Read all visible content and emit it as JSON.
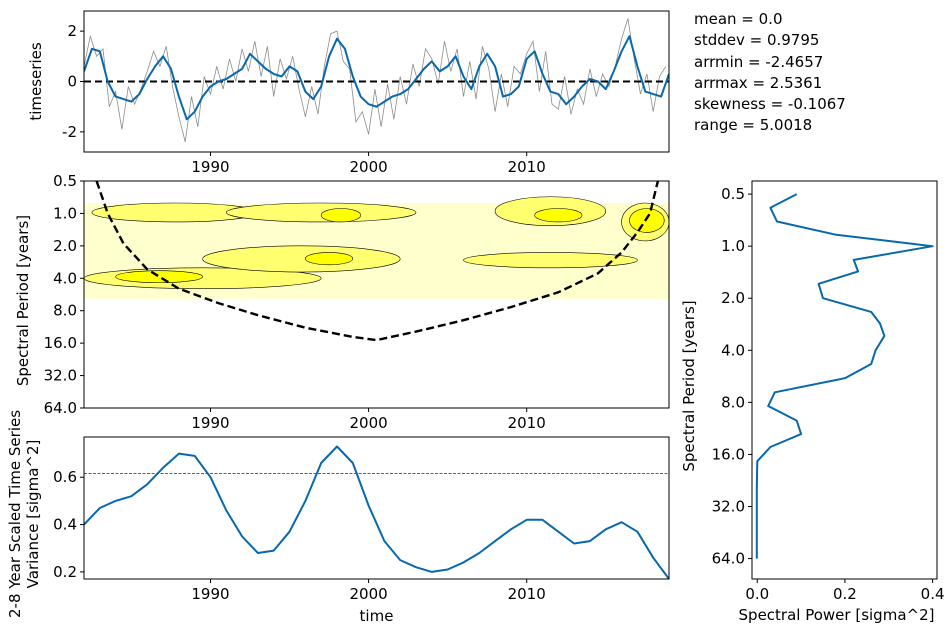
{
  "stats": {
    "mean": "mean = 0.0",
    "stddev": "stddev = 0.9795",
    "arrmin": "arrmin = -2.4657",
    "arrmax": "arrmax = 2.5361",
    "skewness": "skewness = -0.1067",
    "range": "range = 5.0018"
  },
  "colors": {
    "series": "#0868ac",
    "raw": "#8c8c8c",
    "contour_low": "#ffffc0",
    "contour_mid": "#ffff70",
    "contour_high": "#ffff00"
  },
  "chart_data": [
    {
      "id": "timeseries",
      "type": "line",
      "ylabel": "timeseries",
      "xlim": [
        1982,
        2019
      ],
      "ylim": [
        -2.8,
        2.8
      ],
      "x_ticks": [
        "1990",
        "2000",
        "2010"
      ],
      "y_ticks": [
        "-2",
        "0",
        "2"
      ],
      "zero_line": 0,
      "smooth_series": {
        "x": [
          1982.0,
          1982.5,
          1983.0,
          1983.5,
          1984.0,
          1984.5,
          1985.0,
          1985.5,
          1986.0,
          1986.5,
          1987.0,
          1987.5,
          1988.0,
          1988.5,
          1989.0,
          1989.5,
          1990.0,
          1990.5,
          1991.0,
          1991.5,
          1992.0,
          1992.5,
          1993.0,
          1993.5,
          1994.0,
          1994.5,
          1995.0,
          1995.5,
          1996.0,
          1996.5,
          1997.0,
          1997.5,
          1998.0,
          1998.5,
          1999.0,
          1999.5,
          2000.0,
          2000.5,
          2001.0,
          2001.5,
          2002.0,
          2002.5,
          2003.0,
          2003.5,
          2004.0,
          2004.5,
          2005.0,
          2005.5,
          2006.0,
          2006.5,
          2007.0,
          2007.5,
          2008.0,
          2008.5,
          2009.0,
          2009.5,
          2010.0,
          2010.5,
          2011.0,
          2011.5,
          2012.0,
          2012.5,
          2013.0,
          2013.5,
          2014.0,
          2014.5,
          2015.0,
          2015.5,
          2016.0,
          2016.5,
          2017.0,
          2017.5,
          2018.0,
          2018.5,
          2019.0
        ],
        "y": [
          0.4,
          1.3,
          1.2,
          0.0,
          -0.6,
          -0.7,
          -0.8,
          -0.5,
          0.1,
          0.6,
          1.0,
          0.5,
          -0.6,
          -1.5,
          -1.2,
          -0.6,
          -0.2,
          0.0,
          0.1,
          0.3,
          0.5,
          1.1,
          0.8,
          0.5,
          0.3,
          0.2,
          0.6,
          0.4,
          -0.4,
          -0.7,
          -0.2,
          1.0,
          1.7,
          1.3,
          0.2,
          -0.6,
          -0.9,
          -1.0,
          -0.8,
          -0.6,
          -0.5,
          -0.3,
          0.1,
          0.5,
          0.8,
          0.4,
          0.6,
          1.0,
          0.2,
          -0.3,
          0.6,
          1.1,
          0.6,
          -0.6,
          -0.5,
          -0.2,
          0.9,
          1.2,
          0.3,
          -0.4,
          -0.5,
          -0.9,
          -0.6,
          -0.2,
          0.1,
          0.0,
          -0.3,
          0.4,
          1.2,
          1.8,
          0.6,
          -0.4,
          -0.5,
          -0.6,
          0.3
        ]
      },
      "raw_series": {
        "x": [
          1982.0,
          1982.4,
          1982.8,
          1983.2,
          1983.6,
          1984.0,
          1984.4,
          1984.8,
          1985.2,
          1985.6,
          1986.0,
          1986.4,
          1986.8,
          1987.2,
          1987.6,
          1988.0,
          1988.4,
          1988.8,
          1989.2,
          1989.6,
          1990.0,
          1990.4,
          1990.8,
          1991.2,
          1991.6,
          1992.0,
          1992.4,
          1992.8,
          1993.2,
          1993.6,
          1994.0,
          1994.4,
          1994.8,
          1995.2,
          1995.6,
          1996.0,
          1996.4,
          1996.8,
          1997.2,
          1997.6,
          1998.0,
          1998.4,
          1998.8,
          1999.2,
          1999.6,
          2000.0,
          2000.4,
          2000.8,
          2001.2,
          2001.6,
          2002.0,
          2002.4,
          2002.8,
          2003.2,
          2003.6,
          2004.0,
          2004.4,
          2004.8,
          2005.2,
          2005.6,
          2006.0,
          2006.4,
          2006.8,
          2007.2,
          2007.6,
          2008.0,
          2008.4,
          2008.8,
          2009.2,
          2009.6,
          2010.0,
          2010.4,
          2010.8,
          2011.2,
          2011.6,
          2012.0,
          2012.4,
          2012.8,
          2013.2,
          2013.6,
          2014.0,
          2014.4,
          2014.8,
          2015.2,
          2015.6,
          2016.0,
          2016.4,
          2016.8,
          2017.2,
          2017.6,
          2018.0,
          2018.4,
          2018.8
        ],
        "y": [
          0.6,
          1.8,
          1.0,
          1.3,
          -1.0,
          -0.4,
          -1.9,
          -0.2,
          -0.9,
          -0.3,
          0.4,
          1.2,
          0.6,
          1.4,
          -0.2,
          -1.4,
          -2.4,
          -0.6,
          -1.8,
          0.2,
          -0.5,
          0.6,
          -0.3,
          0.9,
          0.0,
          1.3,
          0.4,
          1.6,
          0.2,
          1.4,
          -0.6,
          0.9,
          0.1,
          1.0,
          -0.3,
          -1.4,
          -0.2,
          -1.3,
          0.6,
          1.9,
          2.0,
          0.8,
          0.5,
          -1.6,
          -1.2,
          -2.1,
          -0.3,
          -1.8,
          -0.1,
          -1.5,
          0.2,
          -0.9,
          0.7,
          -0.2,
          1.3,
          0.9,
          -0.1,
          1.6,
          0.4,
          1.3,
          -0.6,
          0.8,
          -0.7,
          1.4,
          0.5,
          -1.2,
          0.3,
          -1.0,
          0.6,
          0.3,
          1.1,
          1.6,
          -0.4,
          1.2,
          -0.9,
          -1.1,
          0.2,
          -1.3,
          -0.3,
          -0.9,
          0.5,
          -0.6,
          0.3,
          -0.2,
          0.6,
          1.7,
          2.5,
          0.9,
          -0.5,
          0.3,
          -1.2,
          0.2,
          0.6
        ]
      }
    },
    {
      "id": "wavelet-power",
      "type": "heatmap",
      "ylabel": "Spectral Period [years]",
      "xlim": [
        1982,
        2019
      ],
      "y_scale": "log2",
      "ylim": [
        64.0,
        0.5
      ],
      "x_ticks": [
        "1990",
        "2000",
        "2010"
      ],
      "y_ticks": [
        "0.5",
        "1.0",
        "2.0",
        "4.0",
        "8.0",
        "16.0",
        "32.0",
        "64.0"
      ],
      "cone_of_influence": {
        "x": [
          1982.8,
          1983.5,
          1984.5,
          1986.0,
          1988.0,
          1990.5,
          1993.0,
          1996.0,
          1999.0,
          2000.5,
          2003.0,
          2006.0,
          2009.0,
          2012.0,
          2014.5,
          2016.0,
          2017.0,
          2017.8,
          2018.3
        ],
        "period": [
          0.5,
          1.0,
          1.9,
          3.3,
          5.0,
          6.8,
          8.8,
          11.5,
          14.0,
          15.0,
          12.5,
          9.8,
          7.4,
          5.4,
          3.6,
          2.3,
          1.5,
          1.0,
          0.5
        ]
      },
      "contour_regions": [
        {
          "level": "low",
          "x": [
            1982.0,
            2019.0
          ],
          "period": [
            0.8,
            6.2
          ]
        },
        {
          "level": "mid",
          "x": [
            1982.0,
            1997.0
          ],
          "period": [
            3.2,
            5.0
          ]
        },
        {
          "level": "mid",
          "x": [
            1982.5,
            1993.0
          ],
          "period": [
            0.8,
            1.2
          ]
        },
        {
          "level": "mid",
          "x": [
            1991.0,
            2003.0
          ],
          "period": [
            0.8,
            1.2
          ]
        },
        {
          "level": "mid",
          "x": [
            1989.5,
            2002.0
          ],
          "period": [
            2.0,
            3.5
          ]
        },
        {
          "level": "mid",
          "x": [
            2008.0,
            2015.0
          ],
          "period": [
            0.7,
            1.3
          ]
        },
        {
          "level": "mid",
          "x": [
            2016.0,
            2019.0
          ],
          "period": [
            0.8,
            1.8
          ]
        },
        {
          "level": "mid",
          "x": [
            2006.0,
            2017.0
          ],
          "period": [
            2.3,
            3.2
          ]
        },
        {
          "level": "high",
          "x": [
            1984.0,
            1989.5
          ],
          "period": [
            3.4,
            4.4
          ]
        },
        {
          "level": "high",
          "x": [
            1997.0,
            1999.5
          ],
          "period": [
            0.9,
            1.2
          ]
        },
        {
          "level": "high",
          "x": [
            2010.5,
            2013.5
          ],
          "period": [
            0.9,
            1.2
          ]
        },
        {
          "level": "high",
          "x": [
            2016.5,
            2018.7
          ],
          "period": [
            0.9,
            1.5
          ]
        },
        {
          "level": "high",
          "x": [
            1996.0,
            1999.0
          ],
          "period": [
            2.3,
            3.0
          ]
        }
      ]
    },
    {
      "id": "scaled-average",
      "type": "line",
      "ylabel": "2-8 Year Scaled Time Series\nVariance [sigma^2]",
      "xlabel": "time",
      "xlim": [
        1982,
        2019
      ],
      "ylim": [
        0.17,
        0.77
      ],
      "x_ticks": [
        "1990",
        "2000",
        "2010"
      ],
      "y_ticks": [
        "0.2",
        "0.4",
        "0.6"
      ],
      "significance_level": 0.615,
      "series": {
        "x": [
          1982.0,
          1983.0,
          1984.0,
          1985.0,
          1986.0,
          1987.0,
          1988.0,
          1989.0,
          1990.0,
          1991.0,
          1992.0,
          1993.0,
          1994.0,
          1995.0,
          1996.0,
          1997.0,
          1998.0,
          1999.0,
          2000.0,
          2001.0,
          2002.0,
          2003.0,
          2004.0,
          2005.0,
          2006.0,
          2007.0,
          2008.0,
          2009.0,
          2010.0,
          2011.0,
          2012.0,
          2013.0,
          2014.0,
          2015.0,
          2016.0,
          2017.0,
          2018.0,
          2019.0
        ],
        "y": [
          0.4,
          0.47,
          0.5,
          0.52,
          0.57,
          0.64,
          0.7,
          0.69,
          0.6,
          0.46,
          0.35,
          0.28,
          0.29,
          0.37,
          0.5,
          0.66,
          0.73,
          0.66,
          0.48,
          0.33,
          0.25,
          0.22,
          0.2,
          0.21,
          0.24,
          0.28,
          0.33,
          0.38,
          0.42,
          0.42,
          0.37,
          0.32,
          0.33,
          0.38,
          0.41,
          0.37,
          0.26,
          0.17
        ]
      }
    },
    {
      "id": "global-spectrum",
      "type": "line",
      "xlabel": "Spectral Power [sigma^2]",
      "ylabel": "Spectral Period [years]",
      "xlim": [
        -0.012,
        0.41
      ],
      "y_scale": "log2",
      "ylim": [
        0.42,
        84
      ],
      "x_ticks": [
        "0.0",
        "0.2",
        "0.4"
      ],
      "y_ticks": [
        "0.5",
        "1.0",
        "2.0",
        "4.0",
        "8.0",
        "16.0",
        "32.0",
        "64.0"
      ],
      "series": {
        "power": [
          0.09,
          0.03,
          0.045,
          0.18,
          0.4,
          0.22,
          0.23,
          0.14,
          0.15,
          0.26,
          0.28,
          0.29,
          0.27,
          0.26,
          0.2,
          0.04,
          0.025,
          0.09,
          0.1,
          0.03,
          0.0,
          -0.001,
          -0.001,
          -0.001
        ],
        "period": [
          0.5,
          0.6,
          0.72,
          0.86,
          1.0,
          1.2,
          1.4,
          1.65,
          2.0,
          2.4,
          2.8,
          3.3,
          4.0,
          4.8,
          5.8,
          7.0,
          8.4,
          10.2,
          12.2,
          14.5,
          17.5,
          25.0,
          40.0,
          64.0
        ]
      }
    }
  ]
}
